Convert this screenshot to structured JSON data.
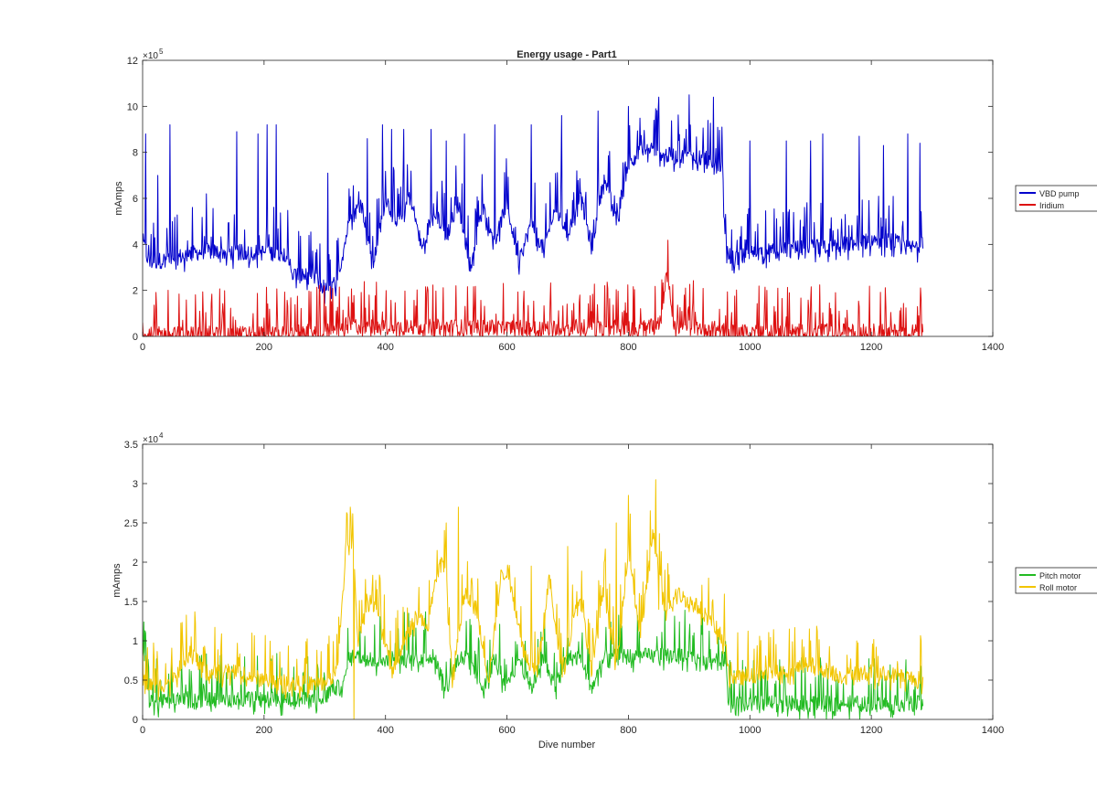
{
  "chart_data": [
    {
      "type": "line",
      "title": "Energy usage - Part1",
      "xlabel": "",
      "ylabel": "mAmps",
      "xlim": [
        0,
        1400
      ],
      "ylim": [
        0,
        1200000
      ],
      "x_ticks": [
        0,
        200,
        400,
        600,
        800,
        1000,
        1200,
        1400
      ],
      "x_tick_labels": [
        "0",
        "200",
        "400",
        "600",
        "800",
        "1000",
        "1200",
        "1400"
      ],
      "y_ticks": [
        0,
        200000,
        400000,
        600000,
        800000,
        1000000,
        1200000
      ],
      "y_tick_labels": [
        "0",
        "2",
        "4",
        "6",
        "8",
        "10",
        "12"
      ],
      "y_exponent": {
        "base": "×10",
        "power": "5"
      },
      "grid": false,
      "legend_position": "outside-right",
      "series": [
        {
          "name": "VBD pump",
          "color": "#0000cc",
          "style": "spiky",
          "x": [
            0,
            10,
            50,
            100,
            150,
            200,
            240,
            245,
            280,
            300,
            320,
            340,
            360,
            380,
            400,
            420,
            440,
            460,
            480,
            500,
            520,
            540,
            560,
            580,
            600,
            620,
            640,
            660,
            680,
            700,
            720,
            740,
            760,
            780,
            800,
            820,
            840,
            860,
            880,
            900,
            920,
            940,
            955,
            960,
            980,
            1000,
            1040,
            1080,
            1120,
            1160,
            1200,
            1240,
            1260,
            1285
          ],
          "y": [
            420000,
            320000,
            340000,
            370000,
            365000,
            365000,
            360000,
            270000,
            260000,
            210000,
            230000,
            500000,
            580000,
            320000,
            600000,
            500000,
            620000,
            380000,
            560000,
            430000,
            580000,
            300000,
            560000,
            420000,
            580000,
            320000,
            500000,
            380000,
            560000,
            440000,
            620000,
            380000,
            700000,
            500000,
            760000,
            800000,
            820000,
            790000,
            780000,
            780000,
            780000,
            760000,
            740000,
            360000,
            340000,
            360000,
            370000,
            380000,
            390000,
            400000,
            420000,
            410000,
            380000,
            400000
          ],
          "spike_peaks": [
            [
              5,
              880000
            ],
            [
              25,
              700000
            ],
            [
              45,
              920000
            ],
            [
              105,
              620000
            ],
            [
              155,
              890000
            ],
            [
              190,
              880000
            ],
            [
              205,
              920000
            ],
            [
              220,
              920000
            ],
            [
              305,
              710000
            ],
            [
              370,
              860000
            ],
            [
              395,
              920000
            ],
            [
              410,
              900000
            ],
            [
              430,
              900000
            ],
            [
              475,
              900000
            ],
            [
              500,
              850000
            ],
            [
              530,
              880000
            ],
            [
              580,
              920000
            ],
            [
              640,
              920000
            ],
            [
              690,
              960000
            ],
            [
              750,
              980000
            ],
            [
              800,
              1000000
            ],
            [
              850,
              1040000
            ],
            [
              900,
              1050000
            ],
            [
              940,
              1040000
            ],
            [
              1000,
              850000
            ],
            [
              1060,
              850000
            ],
            [
              1100,
              850000
            ],
            [
              1120,
              880000
            ],
            [
              1180,
              870000
            ],
            [
              1220,
              830000
            ],
            [
              1260,
              880000
            ],
            [
              1280,
              840000
            ]
          ]
        },
        {
          "name": "Iridium",
          "color": "#dd1111",
          "style": "spiky",
          "x": [
            0,
            100,
            200,
            300,
            340,
            360,
            400,
            500,
            600,
            700,
            800,
            840,
            855,
            862,
            868,
            875,
            880,
            900,
            950,
            960,
            1000,
            1100,
            1200,
            1285
          ],
          "y": [
            5000,
            10000,
            10000,
            20000,
            50000,
            40000,
            40000,
            40000,
            35000,
            40000,
            40000,
            40000,
            60000,
            310000,
            200000,
            60000,
            40000,
            40000,
            30000,
            20000,
            20000,
            20000,
            20000,
            20000
          ],
          "spike_peaks": [
            [
              0,
              60000
            ],
            [
              100,
              90000
            ],
            [
              200,
              80000
            ],
            [
              300,
              60000
            ],
            [
              340,
              90000
            ],
            [
              960,
              90000
            ],
            [
              1040,
              130000
            ],
            [
              1100,
              150000
            ],
            [
              1180,
              130000
            ],
            [
              1280,
              100000
            ]
          ]
        }
      ]
    },
    {
      "type": "line",
      "title": "",
      "xlabel": "Dive number",
      "ylabel": "mAmps",
      "xlim": [
        0,
        1400
      ],
      "ylim": [
        0,
        35000
      ],
      "x_ticks": [
        0,
        200,
        400,
        600,
        800,
        1000,
        1200,
        1400
      ],
      "x_tick_labels": [
        "0",
        "200",
        "400",
        "600",
        "800",
        "1000",
        "1200",
        "1400"
      ],
      "y_ticks": [
        0,
        5000,
        10000,
        15000,
        20000,
        25000,
        30000,
        35000
      ],
      "y_tick_labels": [
        "0",
        "0.5",
        "1",
        "1.5",
        "2",
        "2.5",
        "3",
        "3.5"
      ],
      "y_exponent": {
        "base": "×10",
        "power": "4"
      },
      "grid": false,
      "legend_position": "outside-right",
      "series": [
        {
          "name": "Pitch motor",
          "color": "#22bb22",
          "style": "spiky",
          "x": [
            0,
            5,
            10,
            15,
            50,
            100,
            150,
            200,
            250,
            300,
            310,
            330,
            340,
            360,
            380,
            400,
            450,
            480,
            500,
            520,
            540,
            560,
            580,
            600,
            620,
            640,
            660,
            680,
            700,
            720,
            740,
            760,
            800,
            860,
            900,
            960,
            965,
            1000,
            1100,
            1200,
            1285
          ],
          "y": [
            7500,
            8000,
            2500,
            2000,
            2500,
            2500,
            2500,
            2500,
            2500,
            2500,
            4000,
            4000,
            8000,
            7800,
            7600,
            7800,
            7800,
            7900,
            4000,
            7800,
            7700,
            4000,
            7800,
            4000,
            7800,
            4000,
            7700,
            4000,
            7800,
            7900,
            4000,
            7800,
            8000,
            8100,
            8000,
            7800,
            2000,
            2000,
            2000,
            2000,
            2000
          ],
          "spike_peaks": [
            [
              0,
              8000
            ],
            [
              100,
              4500
            ],
            [
              200,
              4800
            ],
            [
              300,
              5000
            ],
            [
              970,
              4500
            ],
            [
              1100,
              4500
            ],
            [
              1200,
              4500
            ],
            [
              1280,
              4500
            ]
          ]
        },
        {
          "name": "Roll motor",
          "color": "#f2c500",
          "style": "spiky",
          "x": [
            0,
            20,
            50,
            80,
            100,
            150,
            200,
            250,
            300,
            320,
            335,
            345,
            355,
            370,
            390,
            410,
            430,
            450,
            470,
            490,
            500,
            510,
            530,
            550,
            570,
            590,
            600,
            630,
            650,
            670,
            690,
            720,
            740,
            760,
            780,
            800,
            820,
            840,
            860,
            880,
            900,
            920,
            940,
            960,
            965,
            1000,
            1050,
            1100,
            1150,
            1200,
            1250,
            1285
          ],
          "y": [
            5000,
            4000,
            5000,
            9000,
            6000,
            6000,
            5000,
            4500,
            4500,
            6000,
            22000,
            24000,
            10000,
            16000,
            13000,
            6000,
            10000,
            13000,
            12000,
            21000,
            18000,
            5000,
            16000,
            14000,
            5000,
            18000,
            19000,
            8000,
            6000,
            18000,
            6000,
            16000,
            6000,
            17000,
            6000,
            22000,
            10000,
            24000,
            14000,
            16000,
            15000,
            14000,
            12000,
            10000,
            5000,
            5500,
            6000,
            7000,
            5500,
            6000,
            5500,
            5000
          ],
          "spike_peaks": [
            [
              80,
              10500
            ],
            [
              342,
              27000
            ],
            [
              348,
              0
            ],
            [
              500,
              25000
            ],
            [
              520,
              27000
            ],
            [
              590,
              19000
            ],
            [
              640,
              19500
            ],
            [
              700,
              22000
            ],
            [
              780,
              25000
            ],
            [
              800,
              28500
            ],
            [
              845,
              30500
            ],
            [
              850,
              14000
            ],
            [
              1100,
              10000
            ]
          ]
        }
      ]
    }
  ]
}
